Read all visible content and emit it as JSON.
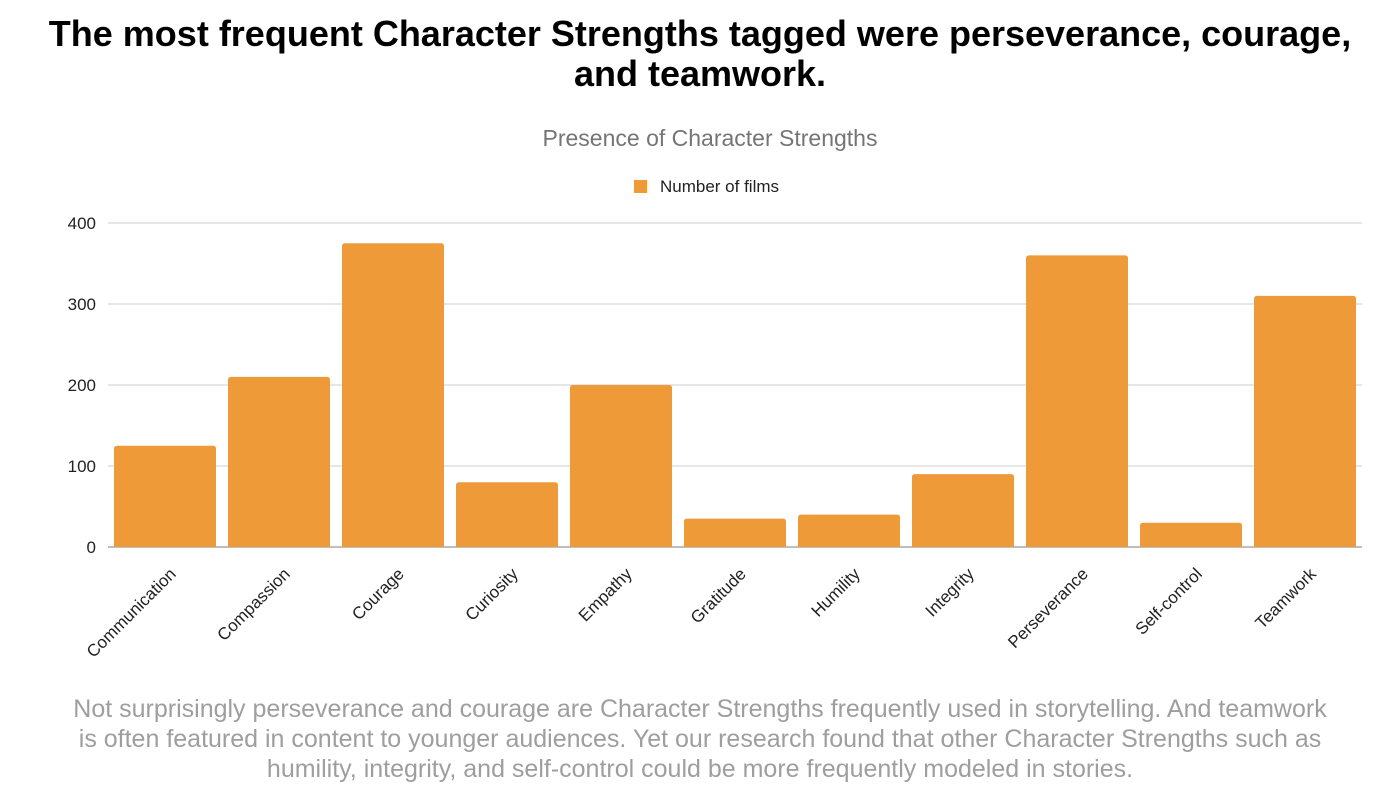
{
  "headline": {
    "line1": "The most frequent Character Strengths tagged were perseverance, courage,",
    "line2": "and teamwork."
  },
  "footnote": {
    "line1": "Not surprisingly perseverance and courage are Character Strengths frequently used in storytelling. And teamwork",
    "line2": "is often featured in content to younger audiences. Yet our research found that other Character Strengths such as",
    "line3": "humility, integrity, and self-control could be more frequently modeled in stories."
  },
  "colors": {
    "bar": "#ef9a38",
    "grid": "#cccccc",
    "axis": "#999999",
    "title": "#757575",
    "text": "#222222",
    "footnote": "#9e9e9e"
  },
  "chart_data": {
    "type": "bar",
    "title": "Presence of Character Strengths",
    "categories": [
      "Communication",
      "Compassion",
      "Courage",
      "Curiosity",
      "Empathy",
      "Gratitude",
      "Humility",
      "Integrity",
      "Perseverance",
      "Self-control",
      "Teamwork"
    ],
    "series": [
      {
        "name": "Number of films",
        "values": [
          125,
          210,
          375,
          80,
          200,
          35,
          40,
          90,
          360,
          30,
          310
        ]
      }
    ],
    "ylim": [
      0,
      400
    ],
    "yticks": [
      0,
      100,
      200,
      300,
      400
    ],
    "xlabel": "",
    "ylabel": "",
    "grid": true,
    "legend": "top-center"
  }
}
